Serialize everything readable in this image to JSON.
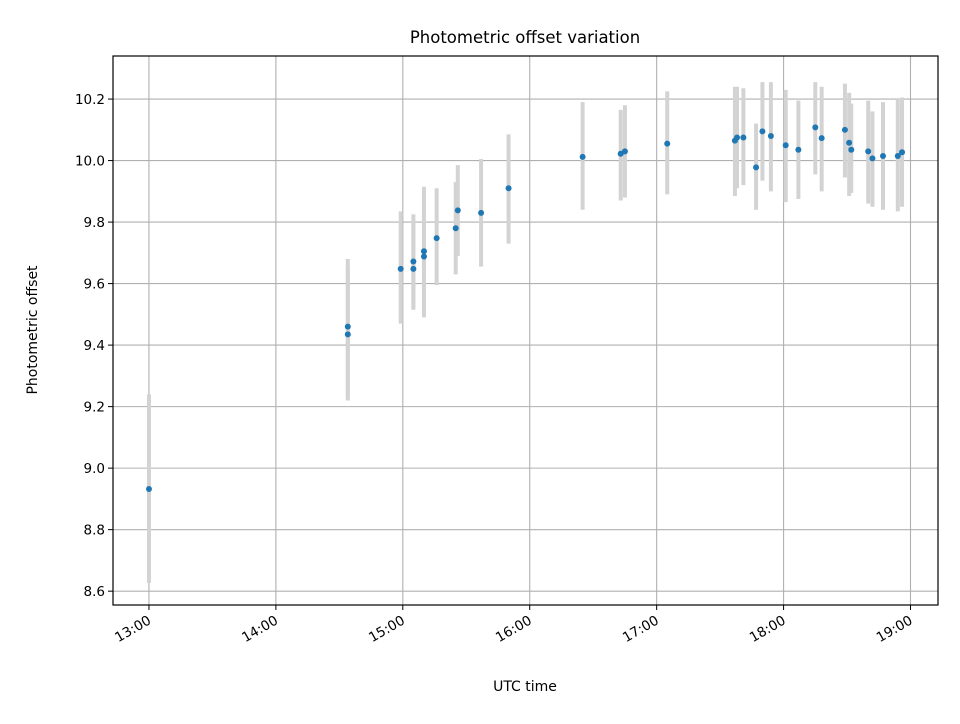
{
  "colors": {
    "point": "#1f77b4",
    "errorbar": "#d3d3d3",
    "grid": "#b0b0b0",
    "axes": "#000000"
  },
  "chart_data": {
    "type": "scatter",
    "title": "Photometric offset variation",
    "xlabel": "UTC time",
    "ylabel": "Photometric offset",
    "x_unit": "UTC hour (time of day)",
    "xlim": [
      "12:43",
      "19:13"
    ],
    "ylim": [
      8.555,
      10.34
    ],
    "grid": true,
    "xticks": [
      "13:00",
      "14:00",
      "15:00",
      "16:00",
      "17:00",
      "18:00",
      "19:00"
    ],
    "yticks": [
      "8.6",
      "8.8",
      "9.0",
      "9.2",
      "9.4",
      "9.6",
      "9.8",
      "10.0",
      "10.2"
    ],
    "series": [
      {
        "error_style": "vertical bars",
        "points": [
          {
            "time": "13:00",
            "y": 8.932,
            "low": 8.627,
            "high": 9.24
          },
          {
            "time": "14:34",
            "y": 9.46,
            "low": 9.225,
            "high": 9.68
          },
          {
            "time": "14:34",
            "y": 9.435,
            "low": 9.22,
            "high": 9.655
          },
          {
            "time": "14:59",
            "y": 9.648,
            "low": 9.47,
            "high": 9.835
          },
          {
            "time": "15:05",
            "y": 9.672,
            "low": 9.515,
            "high": 9.825
          },
          {
            "time": "15:05",
            "y": 9.648,
            "low": 9.52,
            "high": 9.8
          },
          {
            "time": "15:10",
            "y": 9.705,
            "low": 9.49,
            "high": 9.915
          },
          {
            "time": "15:10",
            "y": 9.688,
            "low": 9.5,
            "high": 9.9
          },
          {
            "time": "15:16",
            "y": 9.748,
            "low": 9.595,
            "high": 9.91
          },
          {
            "time": "15:25",
            "y": 9.78,
            "low": 9.63,
            "high": 9.93
          },
          {
            "time": "15:26",
            "y": 9.838,
            "low": 9.69,
            "high": 9.985
          },
          {
            "time": "15:37",
            "y": 9.83,
            "low": 9.655,
            "high": 10.005
          },
          {
            "time": "15:50",
            "y": 9.91,
            "low": 9.73,
            "high": 10.085
          },
          {
            "time": "16:25",
            "y": 10.012,
            "low": 9.84,
            "high": 10.19
          },
          {
            "time": "16:43",
            "y": 10.022,
            "low": 9.87,
            "high": 10.165
          },
          {
            "time": "16:45",
            "y": 10.03,
            "low": 9.88,
            "high": 10.18
          },
          {
            "time": "17:05",
            "y": 10.055,
            "low": 9.89,
            "high": 10.225
          },
          {
            "time": "17:37",
            "y": 10.065,
            "low": 9.885,
            "high": 10.24
          },
          {
            "time": "17:38",
            "y": 10.075,
            "low": 9.91,
            "high": 10.24
          },
          {
            "time": "17:41",
            "y": 10.075,
            "low": 9.92,
            "high": 10.235
          },
          {
            "time": "17:47",
            "y": 9.978,
            "low": 9.84,
            "high": 10.12
          },
          {
            "time": "17:50",
            "y": 10.095,
            "low": 9.935,
            "high": 10.255
          },
          {
            "time": "17:54",
            "y": 10.08,
            "low": 9.9,
            "high": 10.255
          },
          {
            "time": "18:01",
            "y": 10.05,
            "low": 9.865,
            "high": 10.23
          },
          {
            "time": "18:07",
            "y": 10.035,
            "low": 9.875,
            "high": 10.195
          },
          {
            "time": "18:15",
            "y": 10.108,
            "low": 9.955,
            "high": 10.255
          },
          {
            "time": "18:18",
            "y": 10.073,
            "low": 9.9,
            "high": 10.24
          },
          {
            "time": "18:29",
            "y": 10.1,
            "low": 9.945,
            "high": 10.25
          },
          {
            "time": "18:31",
            "y": 10.058,
            "low": 9.885,
            "high": 10.22
          },
          {
            "time": "18:32",
            "y": 10.035,
            "low": 9.895,
            "high": 10.185
          },
          {
            "time": "18:40",
            "y": 10.03,
            "low": 9.86,
            "high": 10.195
          },
          {
            "time": "18:42",
            "y": 10.007,
            "low": 9.85,
            "high": 10.16
          },
          {
            "time": "18:47",
            "y": 10.015,
            "low": 9.84,
            "high": 10.19
          },
          {
            "time": "18:54",
            "y": 10.015,
            "low": 9.835,
            "high": 10.2
          },
          {
            "time": "18:56",
            "y": 10.027,
            "low": 9.85,
            "high": 10.205
          }
        ]
      }
    ]
  }
}
